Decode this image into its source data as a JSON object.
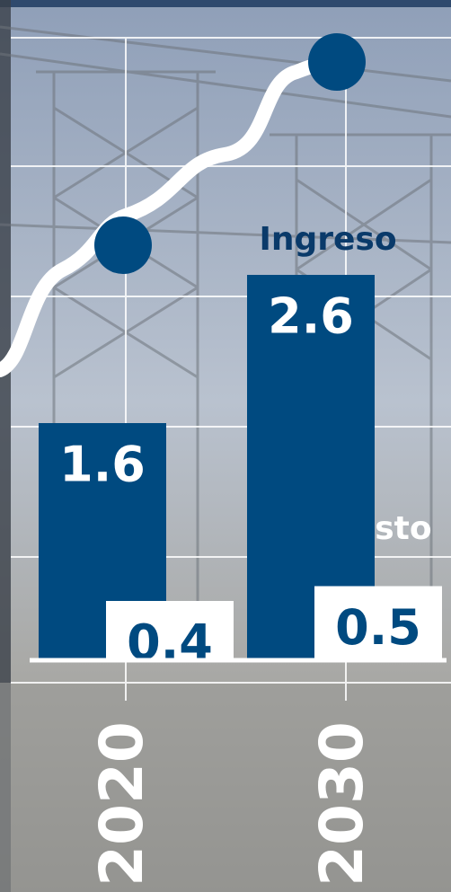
{
  "chart_data": {
    "type": "bar",
    "categories": [
      "2020",
      "2030"
    ],
    "series": [
      {
        "name": "Ingreso",
        "color": "#004a80",
        "values": [
          1.6,
          2.6
        ]
      },
      {
        "name": "Gasto",
        "color": "#ffffff",
        "values": [
          0.4,
          0.5
        ]
      }
    ]
  }
}
